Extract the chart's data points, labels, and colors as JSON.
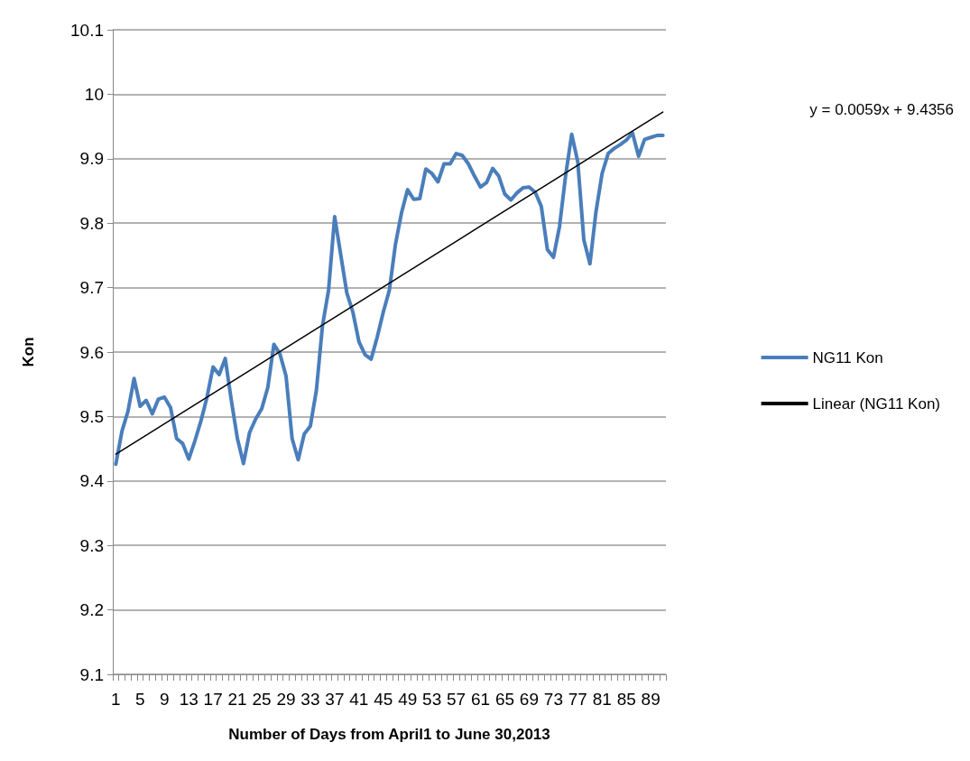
{
  "chart_data": {
    "type": "line",
    "xlabel": "Number of Days from April1 to June 30,2013",
    "ylabel": "Kon",
    "categories": [
      "1",
      null,
      null,
      null,
      "5",
      null,
      null,
      null,
      "9",
      null,
      null,
      null,
      "13",
      null,
      null,
      null,
      "17",
      null,
      null,
      null,
      "21",
      null,
      null,
      null,
      "25",
      null,
      null,
      null,
      "29",
      null,
      null,
      null,
      "33",
      null,
      null,
      null,
      "37",
      null,
      null,
      null,
      "41",
      null,
      null,
      null,
      "45",
      null,
      null,
      null,
      "49",
      null,
      null,
      null,
      "53",
      null,
      null,
      null,
      "57",
      null,
      null,
      null,
      "61",
      null,
      null,
      null,
      "65",
      null,
      null,
      null,
      "69",
      null,
      null,
      null,
      "73",
      null,
      null,
      null,
      "77",
      null,
      null,
      null,
      "81",
      null,
      null,
      null,
      "85",
      null,
      null,
      null,
      "89",
      null,
      null
    ],
    "series": [
      {
        "name": "NG11 Kon",
        "color": "#4a7ebb",
        "values": [
          9.426,
          9.477,
          9.508,
          9.559,
          9.516,
          9.525,
          9.504,
          9.527,
          9.53,
          9.514,
          9.466,
          9.458,
          9.434,
          9.462,
          9.493,
          9.53,
          9.577,
          9.565,
          9.59,
          9.525,
          9.466,
          9.427,
          9.475,
          9.496,
          9.512,
          9.545,
          9.612,
          9.597,
          9.563,
          9.466,
          9.433,
          9.473,
          9.485,
          9.541,
          9.641,
          9.696,
          9.81,
          9.751,
          9.692,
          9.662,
          9.616,
          9.596,
          9.589,
          9.623,
          9.662,
          9.696,
          9.767,
          9.816,
          9.852,
          9.837,
          9.838,
          9.884,
          9.877,
          9.864,
          9.892,
          9.892,
          9.908,
          9.905,
          9.892,
          9.873,
          9.856,
          9.863,
          9.885,
          9.873,
          9.845,
          9.836,
          9.847,
          9.855,
          9.856,
          9.848,
          9.826,
          9.759,
          9.747,
          9.795,
          9.874,
          9.938,
          9.895,
          9.774,
          9.737,
          9.818,
          9.877,
          9.908,
          9.916,
          9.922,
          9.929,
          9.94,
          9.904,
          9.93,
          9.933,
          9.936,
          9.936
        ]
      },
      {
        "name": "Linear (NG11 Kon)",
        "color": "#000000",
        "values": [
          9.4415,
          null,
          null,
          null,
          null,
          null,
          null,
          null,
          null,
          null,
          null,
          null,
          null,
          null,
          null,
          null,
          null,
          null,
          null,
          null,
          null,
          null,
          null,
          null,
          null,
          null,
          null,
          null,
          null,
          null,
          null,
          null,
          null,
          null,
          null,
          null,
          null,
          null,
          null,
          null,
          null,
          null,
          null,
          null,
          null,
          null,
          null,
          null,
          null,
          null,
          null,
          null,
          null,
          null,
          null,
          null,
          null,
          null,
          null,
          null,
          null,
          null,
          null,
          null,
          null,
          null,
          null,
          null,
          null,
          null,
          null,
          null,
          null,
          null,
          null,
          null,
          null,
          null,
          null,
          null,
          null,
          null,
          null,
          null,
          null,
          null,
          null,
          null,
          null,
          null,
          9.9725
        ]
      }
    ],
    "ylim": [
      9.1,
      10.1
    ],
    "yticks": [
      9.1,
      9.2,
      9.3,
      9.4,
      9.5,
      9.6,
      9.7,
      9.8,
      9.9,
      10,
      10.1
    ],
    "grid": "y",
    "legend": "right",
    "marker": "none",
    "annotations": [
      "y = 0.0059x + 9.4356"
    ]
  }
}
